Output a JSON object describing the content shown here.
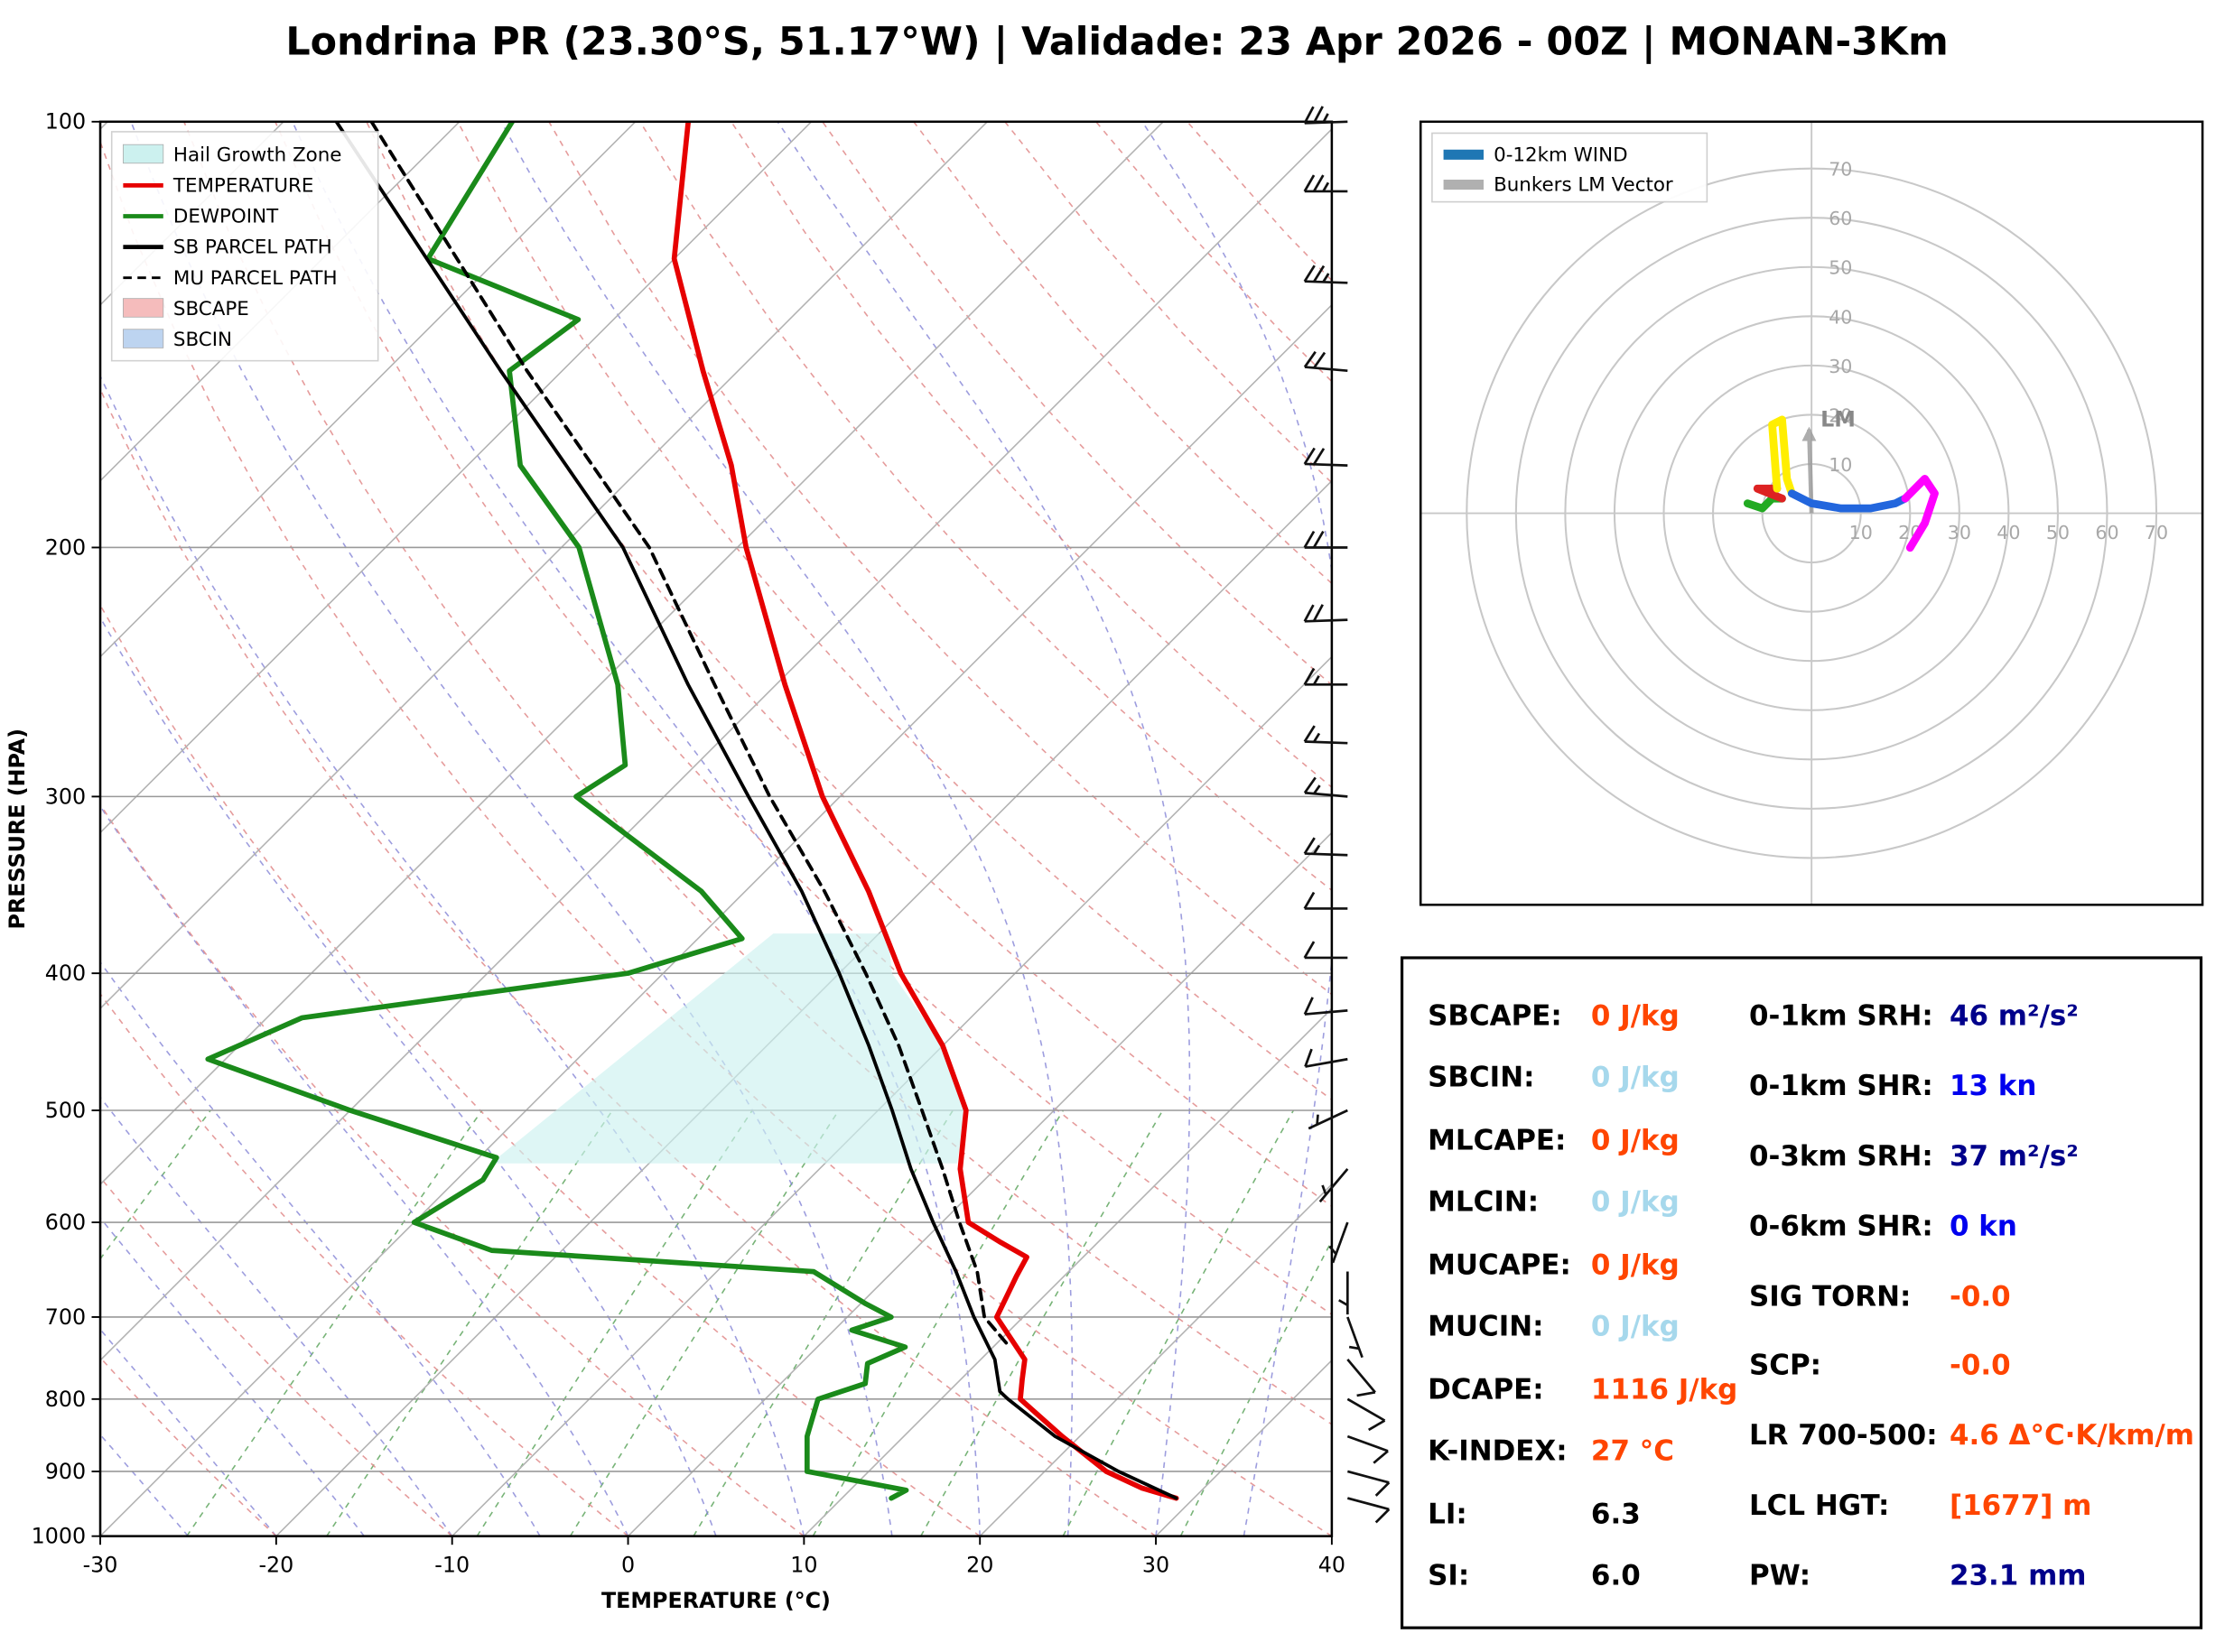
{
  "title": "Londrina PR (23.30°S, 51.17°W) | Validade: 23 Apr 2026 - 00Z | MONAN-3Km",
  "skewt": {
    "x_label": "TEMPERATURE (°C)",
    "y_label": "PRESSURE (HPA)",
    "x_ticks": [
      -30,
      -20,
      -10,
      0,
      10,
      20,
      30,
      40
    ],
    "y_ticks": [
      100,
      200,
      300,
      400,
      500,
      600,
      700,
      800,
      900,
      1000
    ],
    "legend": [
      {
        "label": "Hail Growth Zone",
        "type": "patch",
        "color": "#ccf1ef"
      },
      {
        "label": "TEMPERATURE",
        "type": "line",
        "color": "#e60000"
      },
      {
        "label": "DEWPOINT",
        "type": "line",
        "color": "#1a8a1a"
      },
      {
        "label": "SB PARCEL PATH",
        "type": "line",
        "color": "#000000"
      },
      {
        "label": "MU PARCEL PATH",
        "type": "dashed",
        "color": "#000000"
      },
      {
        "label": "SBCAPE",
        "type": "patch",
        "color": "#f5bcbc"
      },
      {
        "label": "SBCIN",
        "type": "patch",
        "color": "#bdd4f0"
      }
    ]
  },
  "chart_data": {
    "type": "line",
    "subtype": "skew-t log-p sounding with hodograph",
    "x_axis": {
      "label": "TEMPERATURE (°C)",
      "min": -30,
      "max": 40
    },
    "y_axis": {
      "label": "PRESSURE (HPA)",
      "min": 100,
      "max": 1000,
      "scale": "log"
    },
    "series": [
      {
        "name": "TEMPERATURE",
        "color": "#e60000",
        "units": [
          "hPa",
          "degC"
        ],
        "points": [
          [
            940,
            29
          ],
          [
            925,
            26.5
          ],
          [
            900,
            23.5
          ],
          [
            850,
            19
          ],
          [
            800,
            14.5
          ],
          [
            775,
            13.5
          ],
          [
            750,
            12.5
          ],
          [
            700,
            8.5
          ],
          [
            655,
            7.3
          ],
          [
            635,
            6.8
          ],
          [
            620,
            4.5
          ],
          [
            600,
            1.5
          ],
          [
            550,
            -2
          ],
          [
            500,
            -5
          ],
          [
            450,
            -10
          ],
          [
            400,
            -16.5
          ],
          [
            350,
            -23
          ],
          [
            300,
            -31
          ],
          [
            250,
            -39.5
          ],
          [
            200,
            -49.5
          ],
          [
            175,
            -55
          ],
          [
            150,
            -62
          ],
          [
            125,
            -70
          ],
          [
            100,
            -77
          ]
        ]
      },
      {
        "name": "DEWPOINT",
        "color": "#1a8a1a",
        "units": [
          "hPa",
          "degC"
        ],
        "points": [
          [
            940,
            12.8
          ],
          [
            928,
            13.2
          ],
          [
            900,
            6.5
          ],
          [
            850,
            4.5
          ],
          [
            800,
            3
          ],
          [
            780,
            4.8
          ],
          [
            755,
            3.8
          ],
          [
            735,
            5
          ],
          [
            715,
            1
          ],
          [
            700,
            2.5
          ],
          [
            685,
            0.3
          ],
          [
            650,
            -4.5
          ],
          [
            628,
            -24
          ],
          [
            600,
            -30
          ],
          [
            560,
            -28.5
          ],
          [
            540,
            -29
          ],
          [
            500,
            -40
          ],
          [
            460,
            -51
          ],
          [
            430,
            -48
          ],
          [
            400,
            -32
          ],
          [
            378,
            -27.5
          ],
          [
            350,
            -32.5
          ],
          [
            300,
            -45
          ],
          [
            285,
            -44
          ],
          [
            250,
            -49
          ],
          [
            200,
            -59
          ],
          [
            175,
            -67
          ],
          [
            150,
            -73
          ],
          [
            138,
            -72
          ],
          [
            125,
            -84
          ],
          [
            100,
            -87
          ]
        ]
      },
      {
        "name": "SB PARCEL PATH",
        "color": "#000000",
        "units": [
          "hPa",
          "degC"
        ],
        "points": [
          [
            940,
            29
          ],
          [
            900,
            24.2
          ],
          [
            850,
            18.6
          ],
          [
            800,
            13.8
          ],
          [
            790,
            12.9
          ],
          [
            750,
            10.8
          ],
          [
            700,
            7.2
          ],
          [
            650,
            3.6
          ],
          [
            600,
            -0.5
          ],
          [
            550,
            -4.8
          ],
          [
            500,
            -9.2
          ],
          [
            450,
            -14.2
          ],
          [
            400,
            -20
          ],
          [
            350,
            -26.8
          ],
          [
            300,
            -35.2
          ],
          [
            250,
            -45
          ],
          [
            200,
            -56.5
          ],
          [
            150,
            -73.5
          ],
          [
            100,
            -97
          ]
        ]
      },
      {
        "name": "MU PARCEL PATH",
        "color": "#000000",
        "style": "dashed",
        "units": [
          "hPa",
          "degC"
        ],
        "points": [
          [
            730,
            10.5
          ],
          [
            700,
            7.8
          ],
          [
            650,
            4.8
          ],
          [
            600,
            1
          ],
          [
            550,
            -3
          ],
          [
            500,
            -7.5
          ],
          [
            450,
            -12.5
          ],
          [
            400,
            -18.5
          ],
          [
            350,
            -25.5
          ],
          [
            300,
            -34
          ],
          [
            250,
            -43.5
          ],
          [
            200,
            -55
          ],
          [
            150,
            -72
          ],
          [
            100,
            -95
          ]
        ]
      }
    ],
    "hail_growth_zone": {
      "color": "#ccf1ef",
      "polygon_p_T": [
        [
          545,
          -29
        ],
        [
          375,
          -26
        ],
        [
          375,
          -19.5
        ],
        [
          400,
          -17
        ],
        [
          450,
          -10
        ],
        [
          500,
          -5
        ],
        [
          545,
          -2.5
        ]
      ]
    },
    "wind_barbs_kn": [
      {
        "p": 940,
        "spd": 8,
        "dir": 105
      },
      {
        "p": 900,
        "spd": 10,
        "dir": 105
      },
      {
        "p": 850,
        "spd": 12,
        "dir": 110
      },
      {
        "p": 800,
        "spd": 10,
        "dir": 120
      },
      {
        "p": 750,
        "spd": 8,
        "dir": 140
      },
      {
        "p": 700,
        "spd": 5,
        "dir": 160
      },
      {
        "p": 650,
        "spd": 5,
        "dir": 180
      },
      {
        "p": 600,
        "spd": 5,
        "dir": 200
      },
      {
        "p": 550,
        "spd": 5,
        "dir": 220
      },
      {
        "p": 500,
        "spd": 5,
        "dir": 245
      },
      {
        "p": 460,
        "spd": 8,
        "dir": 260
      },
      {
        "p": 425,
        "spd": 10,
        "dir": 265
      },
      {
        "p": 390,
        "spd": 10,
        "dir": 270
      },
      {
        "p": 360,
        "spd": 12,
        "dir": 270
      },
      {
        "p": 330,
        "spd": 15,
        "dir": 272
      },
      {
        "p": 300,
        "spd": 15,
        "dir": 275
      },
      {
        "p": 275,
        "spd": 15,
        "dir": 272
      },
      {
        "p": 250,
        "spd": 15,
        "dir": 270
      },
      {
        "p": 225,
        "spd": 18,
        "dir": 268
      },
      {
        "p": 200,
        "spd": 20,
        "dir": 270
      },
      {
        "p": 175,
        "spd": 20,
        "dir": 272
      },
      {
        "p": 150,
        "spd": 22,
        "dir": 275
      },
      {
        "p": 130,
        "spd": 25,
        "dir": 272
      },
      {
        "p": 112,
        "spd": 25,
        "dir": 270
      },
      {
        "p": 100,
        "spd": 25,
        "dir": 268
      }
    ],
    "hodograph": {
      "rings": [
        10,
        20,
        30,
        40,
        50,
        60,
        70
      ],
      "ring_units": "kn",
      "segments": [
        {
          "color": "#22aa22",
          "points": [
            [
              -13,
              2
            ],
            [
              -10,
              1
            ],
            [
              -8,
              3
            ],
            [
              -6,
              3
            ]
          ]
        },
        {
          "color": "#dd2222",
          "points": [
            [
              -6,
              3
            ],
            [
              -11,
              5
            ],
            [
              -7,
              5
            ]
          ]
        },
        {
          "color": "#ffee00",
          "points": [
            [
              -7,
              5
            ],
            [
              -8,
              18
            ],
            [
              -6,
              19
            ],
            [
              -5,
              7
            ],
            [
              -4,
              4
            ]
          ]
        },
        {
          "color": "#2266dd",
          "points": [
            [
              -4,
              4
            ],
            [
              0,
              2
            ],
            [
              6,
              1
            ],
            [
              12,
              1
            ],
            [
              17,
              2
            ],
            [
              19,
              3
            ]
          ]
        },
        {
          "color": "#ff00ff",
          "points": [
            [
              19,
              3
            ],
            [
              23,
              7
            ],
            [
              25,
              4
            ],
            [
              23,
              -2
            ],
            [
              20,
              -7
            ]
          ]
        }
      ],
      "lm_label": "LM",
      "lm_vector": [
        -0.5,
        17
      ],
      "legend": [
        {
          "label": "0-12km WIND",
          "color": "#1f77b4"
        },
        {
          "label": "Bunkers LM Vector",
          "color": "#b0b0b0"
        }
      ]
    }
  },
  "stats": {
    "left": [
      {
        "label": "SBCAPE:",
        "value": "0 J/kg",
        "color": "#ff4500"
      },
      {
        "label": "SBCIN:",
        "value": "0 J/kg",
        "color": "#a6d8ec"
      },
      {
        "label": "MLCAPE:",
        "value": "0 J/kg",
        "color": "#ff4500"
      },
      {
        "label": "MLCIN:",
        "value": "0 J/kg",
        "color": "#a6d8ec"
      },
      {
        "label": "MUCAPE:",
        "value": "0 J/kg",
        "color": "#ff4500"
      },
      {
        "label": "MUCIN:",
        "value": "0 J/kg",
        "color": "#a6d8ec"
      },
      {
        "label": "DCAPE:",
        "value": "1116 J/kg",
        "color": "#ff4500"
      },
      {
        "label": "K-INDEX:",
        "value": "27 °C",
        "color": "#ff4500"
      },
      {
        "label": "LI:",
        "value": "6.3",
        "color": "#000000"
      },
      {
        "label": "SI:",
        "value": "6.0",
        "color": "#000000"
      }
    ],
    "right": [
      {
        "label": "0-1km SRH:",
        "value": "46 m²/s²",
        "color": "#00008b"
      },
      {
        "label": "0-1km SHR:",
        "value": "13 kn",
        "color": "#0000ee"
      },
      {
        "label": "0-3km SRH:",
        "value": "37 m²/s²",
        "color": "#00008b"
      },
      {
        "label": "0-6km SHR:",
        "value": "0 kn",
        "color": "#0000ee"
      },
      {
        "label": "SIG TORN:",
        "value": "-0.0",
        "color": "#ff4500"
      },
      {
        "label": "SCP:",
        "value": "-0.0",
        "color": "#ff4500"
      },
      {
        "label": "LR 700-500:",
        "value": "4.6 Δ°C·K/km/m",
        "color": "#ff4500"
      },
      {
        "label": "LCL HGT:",
        "value": "[1677] m",
        "color": "#ff4500"
      },
      {
        "label": "PW:",
        "value": "23.1 mm",
        "color": "#00008b"
      }
    ]
  }
}
